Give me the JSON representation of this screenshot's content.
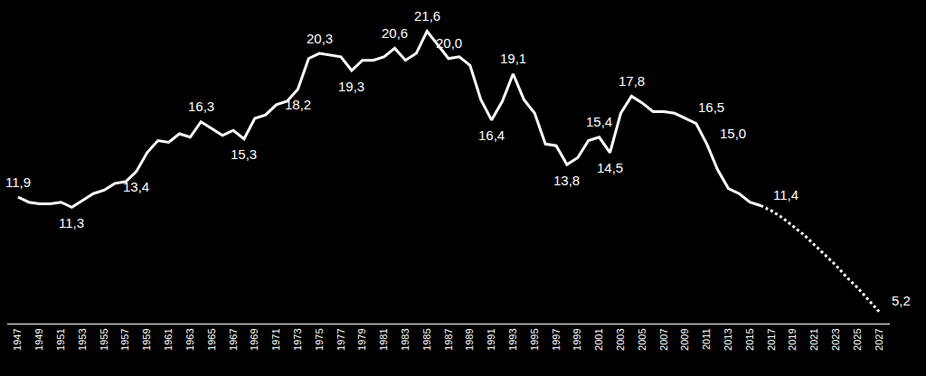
{
  "chart_data": {
    "type": "line",
    "x": [
      1947,
      1948,
      1949,
      1950,
      1951,
      1952,
      1953,
      1954,
      1955,
      1956,
      1957,
      1958,
      1959,
      1960,
      1961,
      1962,
      1963,
      1964,
      1965,
      1966,
      1967,
      1968,
      1969,
      1970,
      1971,
      1972,
      1973,
      1974,
      1975,
      1976,
      1977,
      1978,
      1979,
      1980,
      1981,
      1982,
      1983,
      1984,
      1985,
      1986,
      1987,
      1988,
      1989,
      1990,
      1991,
      1992,
      1993,
      1994,
      1995,
      1996,
      1997,
      1998,
      1999,
      2000,
      2001,
      2002,
      2003,
      2004,
      2005,
      2006,
      2007,
      2008,
      2009,
      2010,
      2011,
      2012,
      2013,
      2014,
      2015,
      2016,
      2017,
      2018,
      2019,
      2020,
      2021,
      2022,
      2023,
      2024,
      2025,
      2026,
      2027
    ],
    "series": [
      {
        "color": "#ffffff",
        "line_style": "solid",
        "values": [
          11.9,
          11.6,
          11.5,
          11.5,
          11.6,
          11.3,
          11.7,
          12.1,
          12.3,
          12.7,
          12.8,
          13.4,
          14.5,
          15.2,
          15.1,
          15.6,
          15.4,
          16.3,
          15.9,
          15.5,
          15.8,
          15.3,
          16.5,
          16.7,
          17.3,
          17.5,
          18.2,
          20.0,
          20.3,
          20.2,
          20.1,
          19.3,
          19.9,
          19.9,
          20.1,
          20.6,
          19.9,
          20.3,
          21.6,
          20.8,
          20.0,
          20.1,
          19.6,
          17.6,
          16.4,
          17.5,
          19.1,
          17.6,
          16.8,
          15.0,
          14.9,
          13.8,
          14.2,
          15.2,
          15.4,
          14.5,
          16.8,
          17.8,
          17.4,
          16.9,
          16.9,
          16.8,
          16.5,
          16.2,
          15.0,
          13.5,
          12.4,
          12.1,
          11.6,
          11.4,
          null,
          null,
          null,
          null,
          null,
          null,
          null,
          null,
          null,
          null,
          null
        ]
      },
      {
        "color": "#ffffff",
        "line_style": "dotted",
        "values": [
          null,
          null,
          null,
          null,
          null,
          null,
          null,
          null,
          null,
          null,
          null,
          null,
          null,
          null,
          null,
          null,
          null,
          null,
          null,
          null,
          null,
          null,
          null,
          null,
          null,
          null,
          null,
          null,
          null,
          null,
          null,
          null,
          null,
          null,
          null,
          null,
          null,
          null,
          null,
          null,
          null,
          null,
          null,
          null,
          null,
          null,
          null,
          null,
          null,
          null,
          null,
          null,
          null,
          null,
          null,
          null,
          null,
          null,
          null,
          null,
          null,
          null,
          null,
          null,
          null,
          null,
          null,
          null,
          null,
          11.4,
          11.1,
          10.7,
          10.2,
          9.7,
          9.1,
          8.5,
          7.9,
          7.2,
          6.6,
          5.9,
          5.2
        ]
      }
    ],
    "annotations": [
      {
        "x": 1947,
        "y": 11.9,
        "label": "11,9",
        "position": "above"
      },
      {
        "x": 1952,
        "y": 11.3,
        "label": "11,3",
        "position": "below"
      },
      {
        "x": 1958,
        "y": 13.4,
        "label": "13,4",
        "position": "below"
      },
      {
        "x": 1964,
        "y": 16.3,
        "label": "16,3",
        "position": "above"
      },
      {
        "x": 1968,
        "y": 15.3,
        "label": "15,3",
        "position": "below"
      },
      {
        "x": 1973,
        "y": 18.2,
        "label": "18,2",
        "position": "below"
      },
      {
        "x": 1975,
        "y": 20.3,
        "label": "20,3",
        "position": "above"
      },
      {
        "x": 1978,
        "y": 19.3,
        "label": "19,3",
        "position": "below"
      },
      {
        "x": 1982,
        "y": 20.6,
        "label": "20,6",
        "position": "above"
      },
      {
        "x": 1985,
        "y": 21.6,
        "label": "21,6",
        "position": "above"
      },
      {
        "x": 1987,
        "y": 20.0,
        "label": "20,0",
        "position": "above"
      },
      {
        "x": 1991,
        "y": 16.4,
        "label": "16,4",
        "position": "below"
      },
      {
        "x": 1993,
        "y": 19.1,
        "label": "19,1",
        "position": "above"
      },
      {
        "x": 1998,
        "y": 13.8,
        "label": "13,8",
        "position": "below"
      },
      {
        "x": 2001,
        "y": 15.4,
        "label": "15,4",
        "position": "above"
      },
      {
        "x": 2002,
        "y": 14.5,
        "label": "14,5",
        "position": "below"
      },
      {
        "x": 2004,
        "y": 17.8,
        "label": "17,8",
        "position": "above"
      },
      {
        "x": 2009,
        "y": 16.5,
        "label": "16,5",
        "position": "right"
      },
      {
        "x": 2011,
        "y": 15.0,
        "label": "15,0",
        "position": "right"
      },
      {
        "x": 2016,
        "y": 11.4,
        "label": "11,4",
        "position": "right"
      },
      {
        "x": 2027,
        "y": 5.2,
        "label": "5,2",
        "position": "right"
      }
    ],
    "xlim": [
      1946,
      2028
    ],
    "xticks": [
      1947,
      1949,
      1951,
      1953,
      1955,
      1957,
      1959,
      1961,
      1963,
      1965,
      1967,
      1969,
      1971,
      1973,
      1975,
      1977,
      1979,
      1981,
      1983,
      1985,
      1987,
      1989,
      1991,
      1993,
      1995,
      1997,
      1999,
      2001,
      2003,
      2005,
      2007,
      2009,
      2011,
      2013,
      2015,
      2017,
      2019,
      2021,
      2023,
      2025,
      2027
    ],
    "ylim": [
      4.5,
      23
    ],
    "yticks": [],
    "grid": false,
    "tick_labels": "x"
  }
}
